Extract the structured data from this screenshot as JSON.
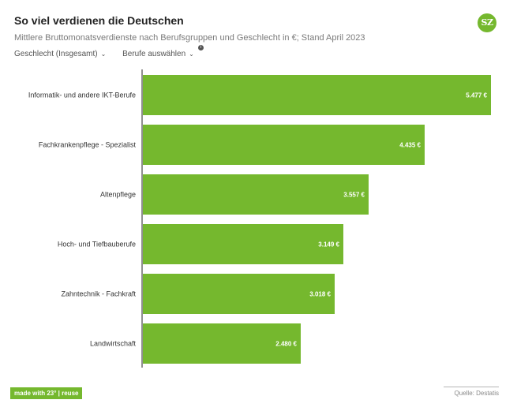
{
  "header": {
    "title": "So viel verdienen die Deutschen",
    "subtitle": "Mittlere Bruttomonatsverdienste nach Berufsgruppen und Geschlecht in  €; Stand April 2023",
    "logo_text": "SZ"
  },
  "controls": {
    "gender_label": "Geschlecht (Insgesamt)",
    "jobs_label": "Berufe auswählen",
    "chevron": "⌄",
    "info": "i"
  },
  "footer": {
    "badge": "made with 23° | reuse",
    "source": "Quelle: Destatis"
  },
  "colors": {
    "bar": "#75b82e",
    "axis": "#222222",
    "label": "#333333"
  },
  "chart_data": {
    "type": "bar",
    "orientation": "horizontal",
    "categories": [
      "Informatik- und andere IKT-Berufe",
      "Fachkrankenpflege - Spezialist",
      "Altenpflege",
      "Hoch- und Tiefbauberufe",
      "Zahntechnik - Fachkraft",
      "Landwirtschaft"
    ],
    "values": [
      5477,
      4435,
      3557,
      3149,
      3018,
      2480
    ],
    "value_labels": [
      "5.477 €",
      "4.435 €",
      "3.557 €",
      "3.149 €",
      "3.018 €",
      "2.480 €"
    ],
    "title": "So viel verdienen die Deutschen",
    "xlim": [
      0,
      5477
    ]
  }
}
